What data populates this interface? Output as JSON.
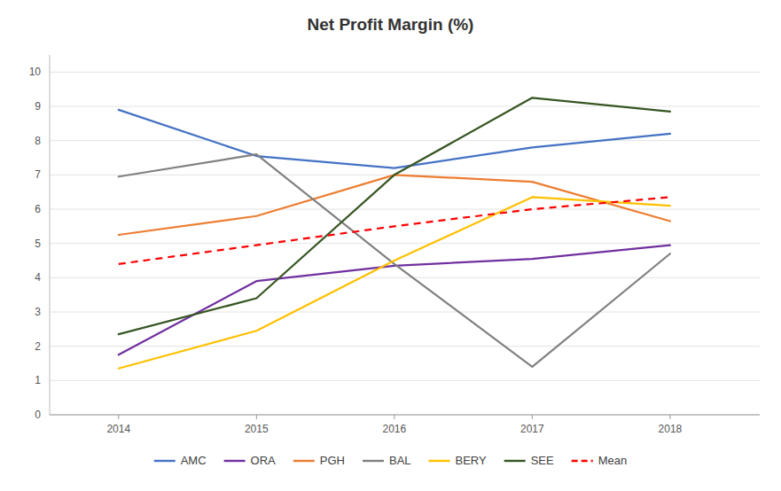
{
  "chart_data": {
    "type": "line",
    "title": "Net Profit Margin (%)",
    "x": [
      2014,
      2015,
      2016,
      2017,
      2018
    ],
    "series": [
      {
        "name": "AMC",
        "color": "#4472C4",
        "values": [
          8.9,
          7.55,
          7.2,
          7.8,
          8.2
        ]
      },
      {
        "name": "ORA",
        "color": "#7030A0",
        "values": [
          1.75,
          3.9,
          4.35,
          4.55,
          4.95
        ]
      },
      {
        "name": "PGH",
        "color": "#ED7D31",
        "values": [
          5.25,
          5.8,
          7.0,
          6.8,
          5.65
        ]
      },
      {
        "name": "BAL",
        "color": "#808080",
        "values": [
          6.95,
          7.6,
          4.4,
          1.4,
          4.7
        ]
      },
      {
        "name": "BERY",
        "color": "#FFC000",
        "values": [
          1.35,
          2.45,
          4.5,
          6.35,
          6.1
        ]
      },
      {
        "name": "SEE",
        "color": "#375623",
        "values": [
          2.35,
          3.4,
          7.0,
          9.25,
          8.85
        ]
      },
      {
        "name": "Mean",
        "color": "#FF0000",
        "line_style": "dashed",
        "values": [
          4.4,
          4.95,
          5.5,
          6.0,
          6.35
        ]
      }
    ],
    "xlim": [
      2013.5,
      2018.65
    ],
    "xticks": [
      2014,
      2015,
      2016,
      2017,
      2018
    ],
    "ylim": [
      0,
      10.5
    ],
    "yticks": [
      0,
      1,
      2,
      3,
      4,
      5,
      6,
      7,
      8,
      9,
      10
    ],
    "grid": true,
    "legend": "bottom"
  }
}
